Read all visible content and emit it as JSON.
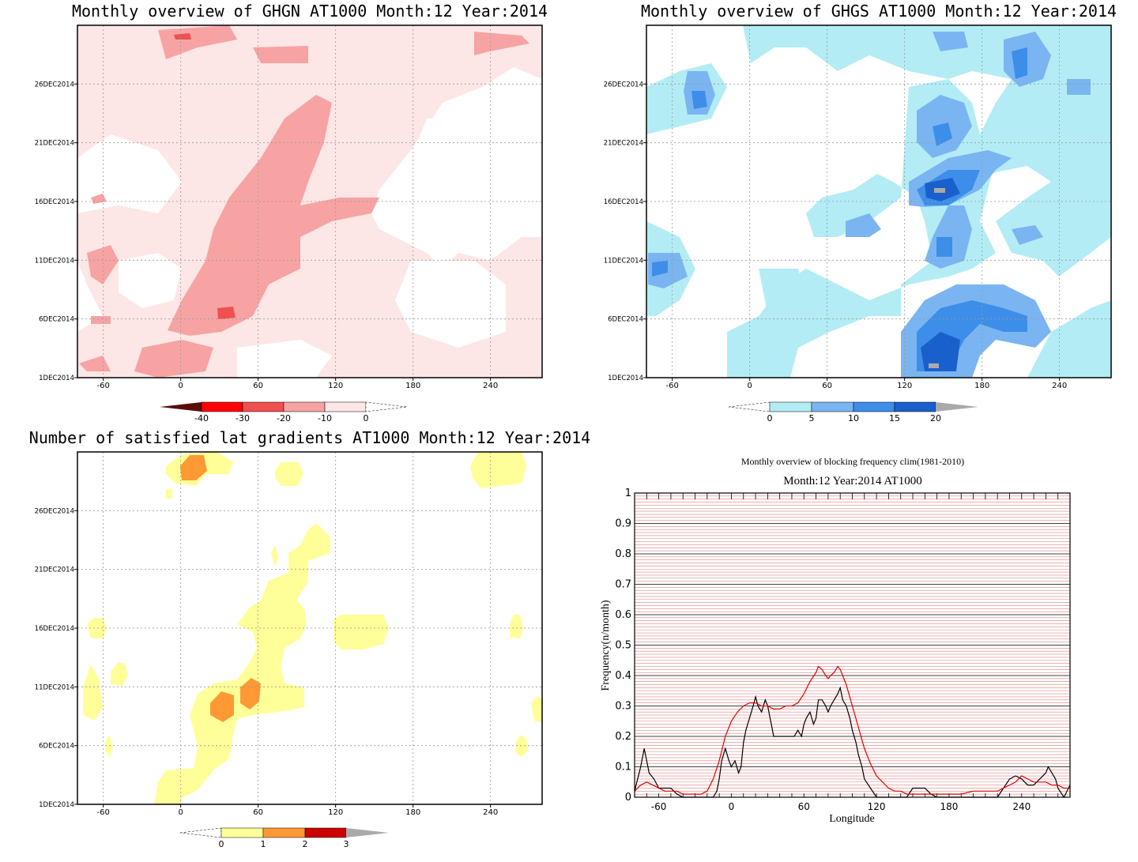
{
  "panels": [
    {
      "title": "Monthly overview of GHGN AT1000 Month:12 Year:2014",
      "y_ticks": [
        "1DEC2014",
        "6DEC2014",
        "11DEC2014",
        "16DEC2014",
        "21DEC2014",
        "26DEC2014"
      ],
      "x_ticks": [
        "-60",
        "0",
        "60",
        "120",
        "180",
        "240"
      ],
      "colorbar": {
        "labels": [
          "-40",
          "-30",
          "-20",
          "-10",
          "0"
        ],
        "colors": [
          "#5a0a0a",
          "#ff0000",
          "#f05050",
          "#f7a3a3",
          "#fde6e6"
        ]
      }
    },
    {
      "title": "Monthly overview of GHGS AT1000 Month:12 Year:2014",
      "y_ticks": [
        "1DEC2014",
        "6DEC2014",
        "11DEC2014",
        "16DEC2014",
        "21DEC2014",
        "26DEC2014"
      ],
      "x_ticks": [
        "-60",
        "0",
        "60",
        "120",
        "180",
        "240"
      ],
      "colorbar": {
        "labels": [
          "0",
          "5",
          "10",
          "15",
          "20"
        ],
        "colors": [
          "#b3ecf5",
          "#7ab5f2",
          "#3d8ee8",
          "#1a60cc",
          "#aaaaaa"
        ]
      }
    },
    {
      "title": "Number of satisfied lat gradients AT1000 Month:12 Year:2014",
      "y_ticks": [
        "1DEC2014",
        "6DEC2014",
        "11DEC2014",
        "16DEC2014",
        "21DEC2014",
        "26DEC2014"
      ],
      "x_ticks": [
        "-60",
        "0",
        "60",
        "120",
        "180",
        "240"
      ],
      "colorbar": {
        "labels": [
          "0",
          "1",
          "2",
          "3"
        ],
        "colors": [
          "#ffff99",
          "#ff9933",
          "#cc0000",
          "#aaaaaa"
        ]
      }
    }
  ],
  "line_panel": {
    "title": "Monthly overview of blocking frequency clim(1981-2010)",
    "subtitle": "Month:12 Year:2014  AT1000"
  },
  "chart_data": [
    {
      "type": "heatmap",
      "title": "Monthly overview of GHGN AT1000 Month:12 Year:2014",
      "x_ticks": [
        -60,
        0,
        60,
        120,
        180,
        240
      ],
      "y_ticks": [
        "1DEC2014",
        "6DEC2014",
        "11DEC2014",
        "16DEC2014",
        "21DEC2014",
        "26DEC2014"
      ],
      "xlim": [
        -80,
        280
      ],
      "levels": [
        -40,
        -30,
        -20,
        -10,
        0
      ],
      "features": [
        {
          "level": -10,
          "lon_range": [
            -5,
            95
          ],
          "day_range": [
            1,
            4
          ],
          "note": "min -20 band"
        },
        {
          "level": -20,
          "lon_range": [
            -10,
            115
          ],
          "day_range": [
            4,
            25
          ],
          "note": "diagonal band"
        },
        {
          "level": -30,
          "lon": 35,
          "day": 6.5
        },
        {
          "level": -30,
          "lon": 0,
          "day": 30.5
        }
      ]
    },
    {
      "type": "heatmap",
      "title": "Monthly overview of GHGS AT1000 Month:12 Year:2014",
      "x_ticks": [
        -60,
        0,
        60,
        120,
        180,
        240
      ],
      "y_ticks": [
        "1DEC2014",
        "6DEC2014",
        "11DEC2014",
        "16DEC2014",
        "21DEC2014",
        "26DEC2014"
      ],
      "xlim": [
        -80,
        280
      ],
      "levels": [
        0,
        5,
        10,
        15,
        20
      ],
      "features": [
        {
          "level": 20,
          "lon": 142,
          "day": 1.8
        },
        {
          "level": 20,
          "lon": 143,
          "day": 16.2
        },
        {
          "level": 15,
          "lon_range": [
            120,
            170
          ],
          "day_range": [
            2,
            7
          ]
        },
        {
          "level": 15,
          "lon_range": [
            130,
            160
          ],
          "day_range": [
            15,
            18
          ]
        }
      ]
    },
    {
      "type": "heatmap",
      "title": "Number of satisfied lat gradients AT1000 Month:12 Year:2014",
      "x_ticks": [
        -60,
        0,
        60,
        120,
        180,
        240
      ],
      "y_ticks": [
        "1DEC2014",
        "6DEC2014",
        "11DEC2014",
        "16DEC2014",
        "21DEC2014",
        "26DEC2014"
      ],
      "xlim": [
        -80,
        280
      ],
      "levels": [
        0,
        1,
        2,
        3
      ],
      "features": [
        {
          "level": 2,
          "lon": 32,
          "day": 9
        },
        {
          "level": 2,
          "lon": 55,
          "day": 10
        },
        {
          "level": 2,
          "lon": 10,
          "day": 30.5
        }
      ]
    },
    {
      "type": "line",
      "title": "Monthly overview of blocking frequency clim(1981-2010)",
      "subtitle": "Month:12 Year:2014  AT1000",
      "xlabel": "Longitude",
      "ylabel": "Frequency(n/month)",
      "xlim": [
        -80,
        280
      ],
      "ylim": [
        0,
        1
      ],
      "x_ticks": [
        -60,
        0,
        60,
        120,
        180,
        240
      ],
      "y_ticks": [
        0,
        0.1,
        0.2,
        0.3,
        0.4,
        0.5,
        0.6,
        0.7,
        0.8,
        0.9,
        1
      ],
      "series": [
        {
          "color": "#000000",
          "x": [
            -80,
            -75,
            -72,
            -68,
            -64,
            -60,
            -55,
            -50,
            -45,
            -40,
            -35,
            -30,
            -25,
            -20,
            -15,
            -12,
            -10,
            -8,
            -5,
            -2,
            0,
            3,
            6,
            8,
            10,
            12,
            15,
            18,
            20,
            22,
            25,
            28,
            30,
            33,
            35,
            40,
            45,
            50,
            52,
            55,
            58,
            60,
            62,
            65,
            68,
            70,
            72,
            75,
            78,
            80,
            82,
            85,
            88,
            90,
            92,
            95,
            98,
            100,
            103,
            105,
            108,
            110,
            115,
            120,
            125,
            130,
            135,
            140,
            145,
            150,
            155,
            160,
            165,
            170,
            175,
            180,
            200,
            220,
            225,
            230,
            235,
            240,
            245,
            250,
            255,
            260,
            262,
            265,
            268,
            270,
            275,
            280
          ],
          "y": [
            0.02,
            0.1,
            0.16,
            0.08,
            0.06,
            0.03,
            0.03,
            0.03,
            0.01,
            0.0,
            0.0,
            0.0,
            0.0,
            0.0,
            0.0,
            0.02,
            0.06,
            0.12,
            0.16,
            0.12,
            0.1,
            0.12,
            0.08,
            0.1,
            0.18,
            0.22,
            0.26,
            0.3,
            0.33,
            0.3,
            0.28,
            0.32,
            0.3,
            0.24,
            0.2,
            0.2,
            0.2,
            0.2,
            0.2,
            0.22,
            0.2,
            0.24,
            0.26,
            0.28,
            0.24,
            0.26,
            0.32,
            0.32,
            0.3,
            0.28,
            0.3,
            0.32,
            0.34,
            0.36,
            0.32,
            0.3,
            0.26,
            0.22,
            0.18,
            0.14,
            0.1,
            0.06,
            0.03,
            0.0,
            0.0,
            0.0,
            0.0,
            0.0,
            0.0,
            0.03,
            0.03,
            0.03,
            0.01,
            0.0,
            0.0,
            0.0,
            0.0,
            0.0,
            0.03,
            0.06,
            0.07,
            0.06,
            0.04,
            0.04,
            0.06,
            0.08,
            0.1,
            0.08,
            0.06,
            0.03,
            0.0,
            0.04
          ]
        },
        {
          "color": "#dd0000",
          "x": [
            -80,
            -75,
            -70,
            -65,
            -60,
            -55,
            -50,
            -45,
            -40,
            -35,
            -30,
            -25,
            -20,
            -15,
            -10,
            -5,
            0,
            5,
            10,
            15,
            20,
            25,
            30,
            35,
            40,
            45,
            50,
            55,
            60,
            65,
            70,
            72,
            75,
            78,
            80,
            82,
            85,
            88,
            90,
            92,
            95,
            100,
            105,
            110,
            115,
            120,
            125,
            130,
            135,
            140,
            145,
            150,
            160,
            170,
            180,
            190,
            200,
            210,
            220,
            225,
            230,
            235,
            240,
            245,
            250,
            255,
            260,
            265,
            270,
            275,
            280
          ],
          "y": [
            0.02,
            0.04,
            0.05,
            0.04,
            0.03,
            0.02,
            0.02,
            0.02,
            0.01,
            0.01,
            0.01,
            0.01,
            0.02,
            0.06,
            0.12,
            0.2,
            0.25,
            0.28,
            0.3,
            0.31,
            0.31,
            0.3,
            0.3,
            0.29,
            0.29,
            0.3,
            0.3,
            0.31,
            0.34,
            0.38,
            0.41,
            0.43,
            0.42,
            0.4,
            0.39,
            0.4,
            0.41,
            0.43,
            0.42,
            0.4,
            0.37,
            0.3,
            0.23,
            0.16,
            0.11,
            0.07,
            0.05,
            0.03,
            0.02,
            0.02,
            0.01,
            0.01,
            0.01,
            0.01,
            0.01,
            0.01,
            0.02,
            0.02,
            0.02,
            0.03,
            0.04,
            0.05,
            0.07,
            0.06,
            0.05,
            0.05,
            0.05,
            0.04,
            0.04,
            0.03,
            0.03
          ]
        }
      ]
    }
  ]
}
